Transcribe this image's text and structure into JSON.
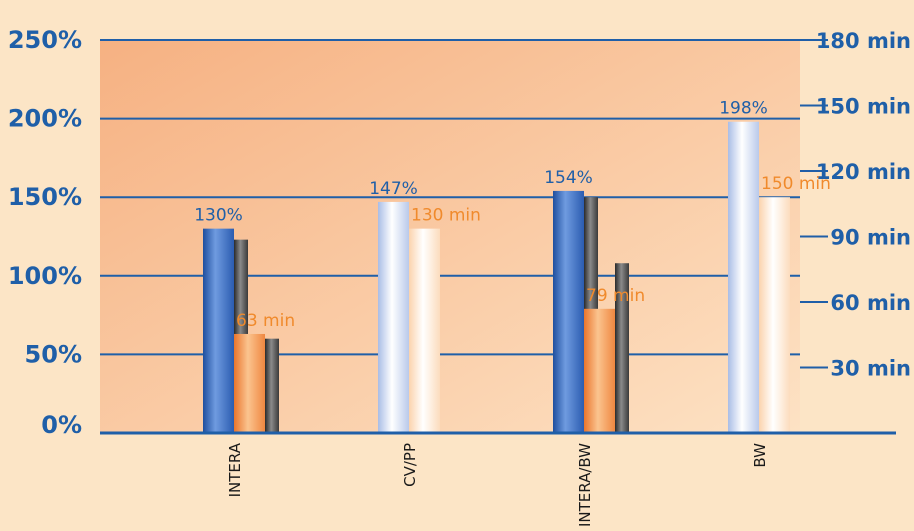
{
  "chart_data": {
    "type": "bar",
    "categories": [
      "INTERA",
      "CV/PP",
      "INTERA/BW",
      "BW"
    ],
    "series": [
      {
        "values": [
          130,
          147,
          154,
          198
        ],
        "labels": [
          "130%",
          "147%",
          "154%",
          "198%"
        ]
      },
      {
        "values": [
          123,
          null,
          150,
          null
        ]
      },
      {
        "values": [
          63,
          130,
          79,
          150
        ],
        "labels": [
          "63 min",
          "130 min",
          "79 min",
          "150 min"
        ]
      },
      {
        "values": [
          60,
          null,
          108,
          null
        ]
      }
    ],
    "ylim": [
      0,
      250
    ],
    "yticks_left": [
      "0%",
      "50%",
      "100%",
      "150%",
      "200%",
      "250%"
    ],
    "y2lim": [
      0,
      180
    ],
    "yticks_right": [
      "30 min",
      "60 min",
      "90 min",
      "120 min",
      "150 min",
      "180 min"
    ],
    "grid": true,
    "colors": {
      "background": "#fce5c6",
      "plot_bg": "#f7b98a",
      "axis": "#1f5fa8",
      "percent_bar": "#3a6dbf",
      "percent_bar_light": "#d5dff2",
      "minutes_bar": "#f39a55",
      "minutes_bar_light": "#fde0c4",
      "shadow_bar": "#555555",
      "percent_label": "#1f5fa8",
      "minutes_label": "#f08a2c"
    }
  }
}
